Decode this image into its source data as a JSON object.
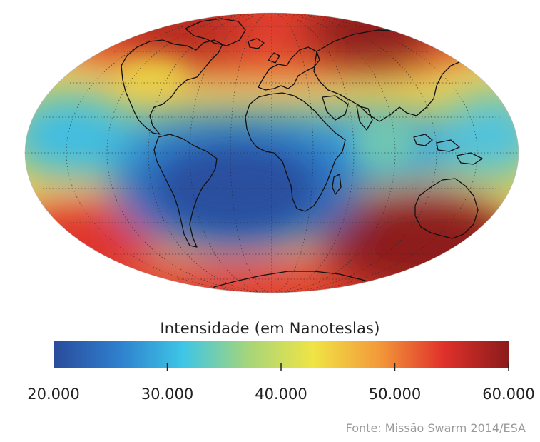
{
  "map": {
    "projection": "Mollweide",
    "graticule": "dotted",
    "coastlines": true
  },
  "legend": {
    "title": "Intensidade (em Nanoteslas)",
    "min": 20000,
    "max": 60000,
    "ticks": [
      {
        "value": 20000,
        "label": "20.000"
      },
      {
        "value": 30000,
        "label": "30.000"
      },
      {
        "value": 40000,
        "label": "40.000"
      },
      {
        "value": 50000,
        "label": "50.000"
      },
      {
        "value": 60000,
        "label": "60.000"
      }
    ],
    "colors": [
      "#2a4b9b",
      "#2e7fcd",
      "#3ec6e6",
      "#a6d57a",
      "#f0e445",
      "#f39a3a",
      "#e0312b",
      "#8b1b1b"
    ]
  },
  "source": "Fonte: Missão Swarm 2014/ESA"
}
